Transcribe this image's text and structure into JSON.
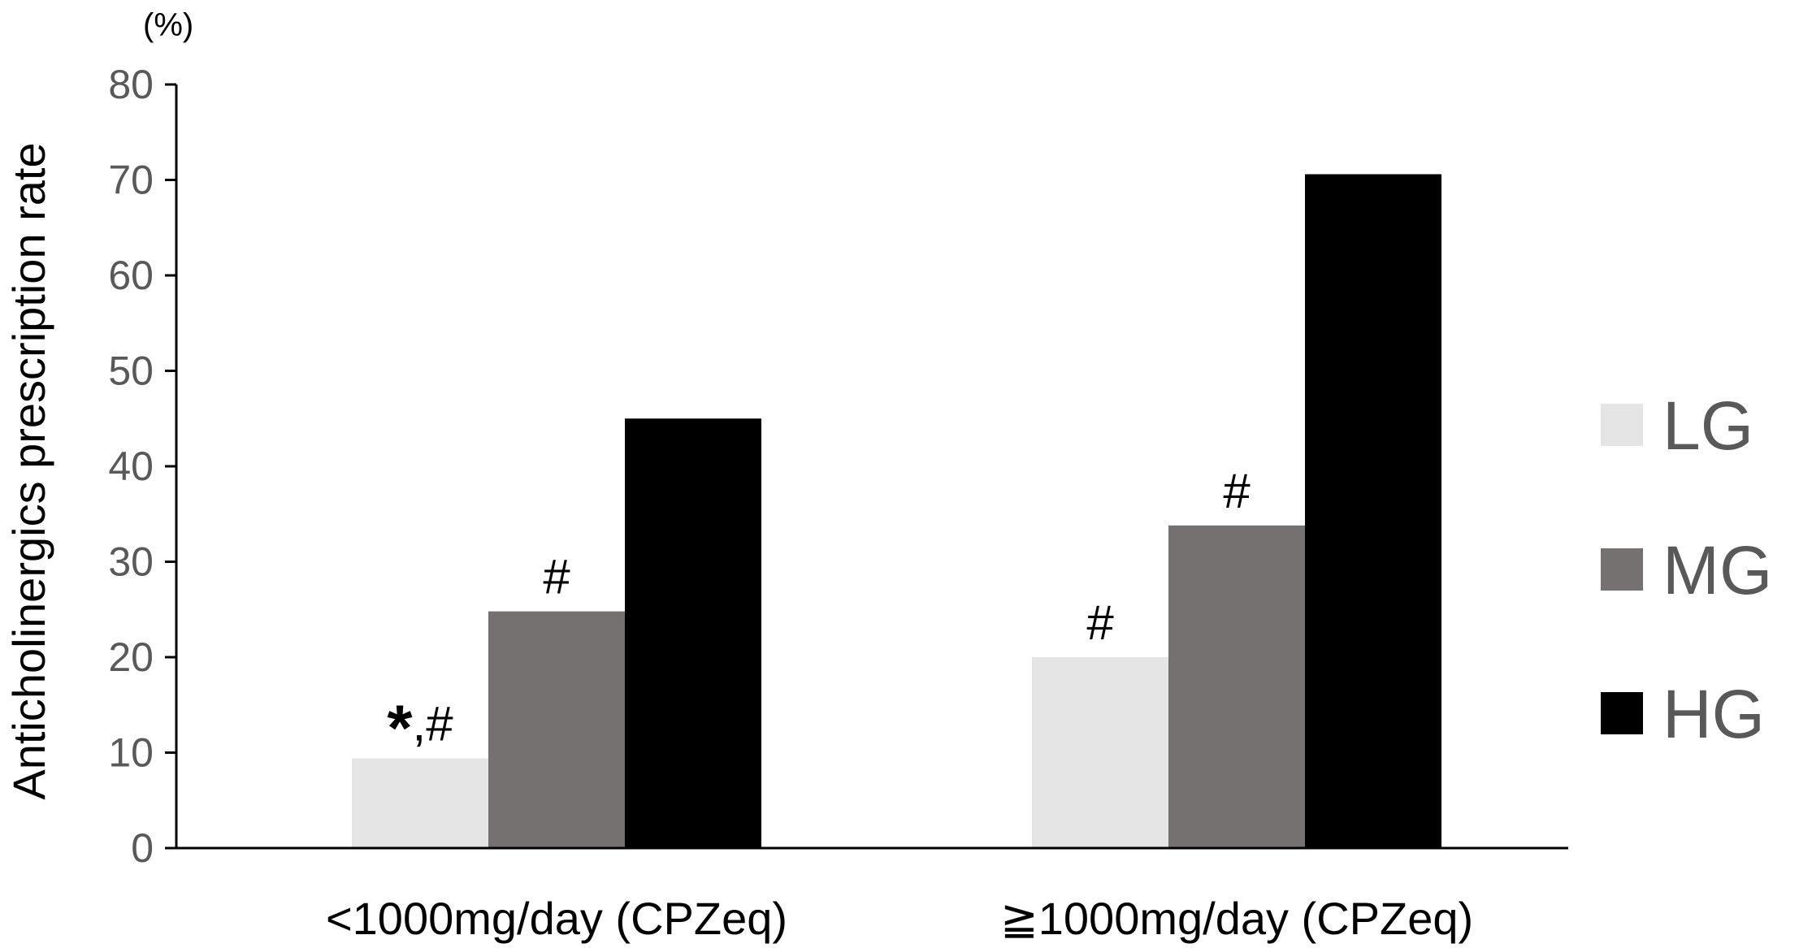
{
  "chart_data": {
    "type": "bar",
    "title": "",
    "unit_label": "(%)",
    "ylabel": "Anticholinergics prescription rate",
    "xlabel": "",
    "ylim": [
      0,
      80
    ],
    "yticks": [
      0,
      10,
      20,
      30,
      40,
      50,
      60,
      70,
      80
    ],
    "categories": [
      "<1000mg/day (CPZeq)",
      "≧1000mg/day (CPZeq)"
    ],
    "series": [
      {
        "name": "LG",
        "color": "#e5e5e5",
        "values": [
          9.4,
          20.0
        ],
        "annotations": [
          "*,#",
          "#"
        ]
      },
      {
        "name": "MG",
        "color": "#767171",
        "values": [
          24.8,
          33.8
        ],
        "annotations": [
          "#",
          "#"
        ]
      },
      {
        "name": "HG",
        "color": "#000000",
        "values": [
          45.0,
          70.6
        ],
        "annotations": [
          "",
          ""
        ]
      }
    ],
    "grid": false,
    "legend_position": "right"
  }
}
